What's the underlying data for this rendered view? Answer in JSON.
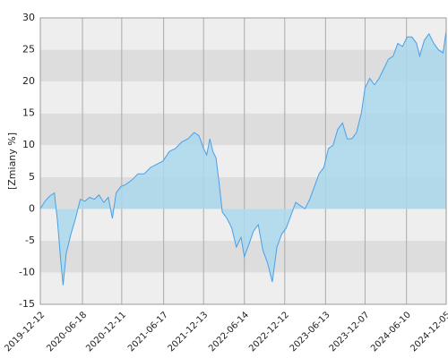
{
  "chart_data": {
    "type": "area",
    "y_label": "[Zmiany %]",
    "x": [
      "2019-12-12",
      "2020-01-02",
      "2020-01-23",
      "2020-02-13",
      "2020-02-27",
      "2020-03-12",
      "2020-03-23",
      "2020-04-06",
      "2020-04-27",
      "2020-05-18",
      "2020-06-08",
      "2020-06-29",
      "2020-07-20",
      "2020-08-10",
      "2020-08-31",
      "2020-09-21",
      "2020-10-12",
      "2020-10-30",
      "2020-11-16",
      "2020-12-07",
      "2020-12-28",
      "2021-01-25",
      "2021-02-22",
      "2021-03-22",
      "2021-04-19",
      "2021-05-17",
      "2021-06-14",
      "2021-07-12",
      "2021-08-09",
      "2021-09-06",
      "2021-10-04",
      "2021-11-01",
      "2021-11-22",
      "2021-12-13",
      "2021-12-27",
      "2022-01-10",
      "2022-01-24",
      "2022-02-07",
      "2022-02-21",
      "2022-03-07",
      "2022-03-28",
      "2022-04-18",
      "2022-05-09",
      "2022-05-30",
      "2022-06-14",
      "2022-07-05",
      "2022-07-25",
      "2022-08-15",
      "2022-09-05",
      "2022-09-26",
      "2022-10-17",
      "2022-11-07",
      "2022-11-28",
      "2022-12-19",
      "2023-01-09",
      "2023-01-30",
      "2023-02-20",
      "2023-03-13",
      "2023-04-03",
      "2023-04-24",
      "2023-05-15",
      "2023-06-05",
      "2023-06-26",
      "2023-07-17",
      "2023-08-07",
      "2023-08-28",
      "2023-09-18",
      "2023-10-09",
      "2023-10-30",
      "2023-11-20",
      "2023-12-07",
      "2023-12-28",
      "2024-01-18",
      "2024-02-08",
      "2024-02-29",
      "2024-03-21",
      "2024-04-11",
      "2024-05-02",
      "2024-05-23",
      "2024-06-13",
      "2024-07-04",
      "2024-07-25",
      "2024-08-08",
      "2024-08-29",
      "2024-09-19",
      "2024-10-10",
      "2024-10-31",
      "2024-11-21",
      "2024-12-05"
    ],
    "values": [
      0,
      1.2,
      2.0,
      2.5,
      -2,
      -8,
      -12,
      -7,
      -4,
      -1.5,
      1.5,
      1.2,
      1.8,
      1.5,
      2.2,
      1.0,
      1.8,
      -1.5,
      2.5,
      3.5,
      3.8,
      4.5,
      5.5,
      5.5,
      6.5,
      7.0,
      7.5,
      9.0,
      9.5,
      10.5,
      11.0,
      12.0,
      11.5,
      9.5,
      8.5,
      11.0,
      9.0,
      8.0,
      4.0,
      -0.5,
      -1.5,
      -3,
      -6,
      -4.5,
      -7.5,
      -5.5,
      -3.5,
      -2.5,
      -6.5,
      -8.5,
      -11.5,
      -6,
      -4,
      -3,
      -1,
      1,
      0.5,
      0,
      1.5,
      3.5,
      5.5,
      6.5,
      9.5,
      10,
      12.5,
      13.5,
      11,
      11,
      12,
      15,
      19,
      20.5,
      19.5,
      20.5,
      22,
      23.5,
      24,
      26,
      25.5,
      27,
      27,
      26,
      24,
      26.5,
      27.5,
      26,
      25,
      24.5,
      28
    ],
    "color": "#4a9fe8",
    "fill": "#a9d8ec",
    "xlim": [
      "2019-12-12",
      "2024-12-05"
    ],
    "xticks": [
      "2019-12-12",
      "2020-06-18",
      "2020-12-11",
      "2021-06-17",
      "2021-12-13",
      "2022-06-14",
      "2022-12-12",
      "2023-06-13",
      "2023-12-07",
      "2024-06-10",
      "2024-12-05"
    ],
    "ylim": [
      -15,
      30
    ],
    "yticks": [
      -15,
      -10,
      -5,
      0,
      5,
      10,
      15,
      20,
      25,
      30
    ],
    "grid": true
  }
}
